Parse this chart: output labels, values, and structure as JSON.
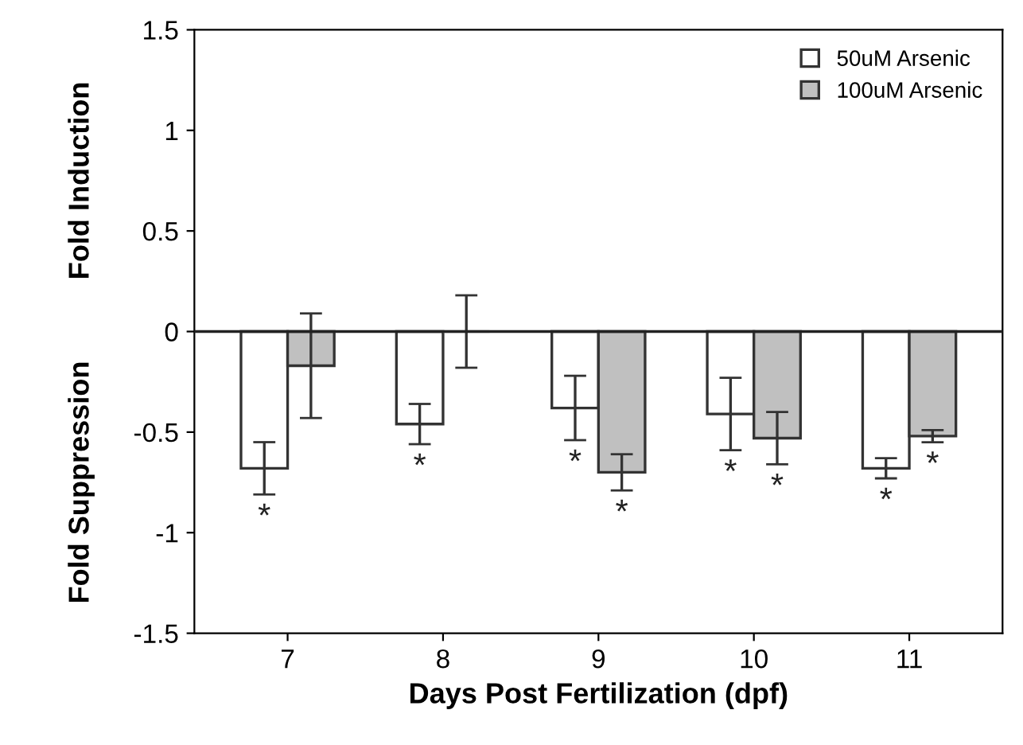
{
  "chart_data": {
    "type": "bar",
    "xlabel": "Days Post Fertilization (dpf)",
    "ylabel": "Fold Induction",
    "annotations": [
      "Fold Suppression"
    ],
    "categories": [
      "7",
      "8",
      "9",
      "10",
      "11"
    ],
    "series": [
      {
        "name": "50uM Arsenic",
        "color": "#ffffff",
        "values": [
          -0.68,
          -0.46,
          -0.38,
          -0.41,
          -0.68
        ],
        "errors": [
          0.13,
          0.1,
          0.16,
          0.18,
          0.05
        ],
        "value_labels": [
          "*",
          "*",
          "*",
          "*",
          "*"
        ]
      },
      {
        "name": "100uM Arsenic",
        "color": "#c0c0c0",
        "values": [
          -0.17,
          0,
          -0.7,
          -0.53,
          -0.52
        ],
        "errors": [
          0.26,
          0.18,
          0.09,
          0.13,
          0.03
        ],
        "value_labels": [
          null,
          null,
          "*",
          "*",
          "*"
        ]
      }
    ],
    "ylim": [
      -1.5,
      1.5
    ],
    "yticks": [
      -1.5,
      -1,
      -0.5,
      0,
      0.5,
      1,
      1.5
    ],
    "ref_lines": [
      {
        "axis": "y",
        "value": 0,
        "color": "#222222"
      }
    ],
    "legend": "top right",
    "grid": false
  }
}
